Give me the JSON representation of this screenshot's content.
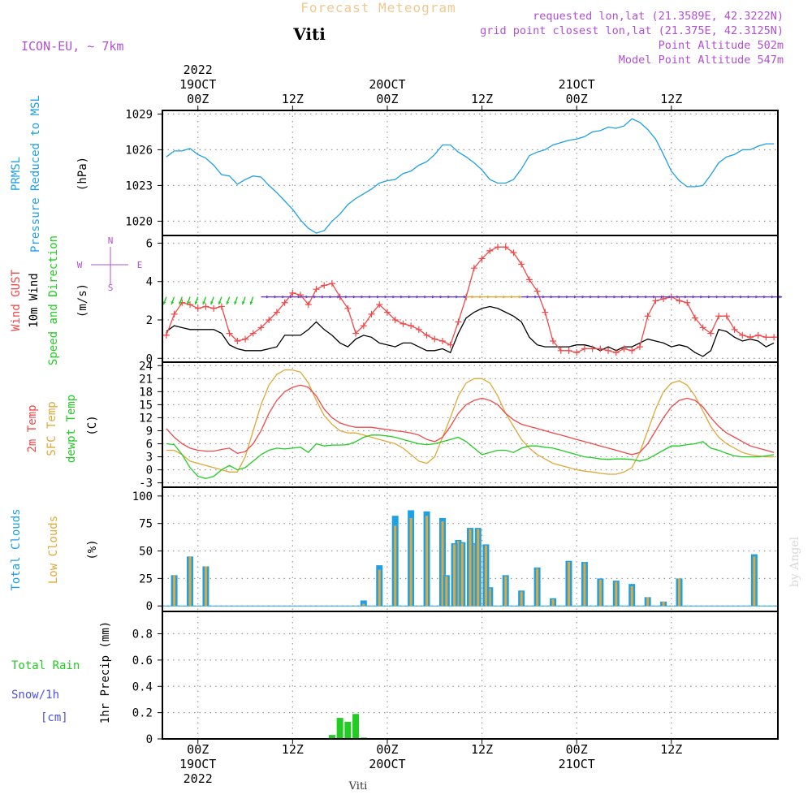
{
  "header": {
    "title": "Forecast Meteogram",
    "location": "Viti",
    "model": "ICON-EU, ~ 7km",
    "requested": "requested lon,lat (21.3589E, 42.3222N)",
    "grid_point": "grid point closest lon,lat (21.375E, 42.3125N)",
    "point_altitude": "Point Altitude 502m",
    "model_altitude": "Model Point Altitude 547m",
    "footer_location": "Viti",
    "watermark": "by Angel"
  },
  "colors": {
    "pressure": "#1ea0e6",
    "gust": "#f04848",
    "wind": "#000000",
    "t2m": "#f04848",
    "sfc": "#e0a838",
    "dew": "#22cc22",
    "total_clouds": "#1ea0e6",
    "low_clouds": "#e0a838",
    "rain": "#22cc22",
    "snow": "#5050e0",
    "label_purple": "#b050d0",
    "title_orange": "#f0c890"
  },
  "chart_data": [
    {
      "type": "line",
      "panel": "pressure",
      "ylabel_lines": [
        "PRMSL",
        "Pressure Reduced to MSL"
      ],
      "yunit": "(hPa)",
      "ylim": [
        1018.8,
        1029.3
      ],
      "yticks": [
        1020,
        1023,
        1026,
        1029
      ],
      "x": [
        -4,
        -3,
        -2,
        -1,
        0,
        1,
        2,
        3,
        4,
        5,
        6,
        7,
        8,
        9,
        10,
        11,
        12,
        13,
        14,
        15,
        16,
        17,
        18,
        19,
        20,
        21,
        22,
        23,
        24,
        25,
        26,
        27,
        28,
        29,
        30,
        31,
        32,
        33,
        34,
        35,
        36,
        37,
        38,
        39,
        40,
        41,
        42,
        43,
        44,
        45,
        46,
        47,
        48,
        49,
        50,
        51,
        52,
        53,
        54,
        55,
        56,
        57,
        58,
        59,
        60,
        61,
        62,
        63,
        64,
        65,
        66,
        67,
        68,
        69,
        70,
        71,
        72,
        73
      ],
      "series": [
        {
          "values": [
            1025.4,
            1025.9,
            1025.9,
            1026.1,
            1025.6,
            1025.3,
            1024.7,
            1023.9,
            1023.8,
            1023.1,
            1023.5,
            1023.8,
            1023.7,
            1023.0,
            1022.4,
            1021.7,
            1021.0,
            1020.1,
            1019.4,
            1019.0,
            1019.2,
            1020.0,
            1020.6,
            1021.4,
            1021.9,
            1022.3,
            1022.7,
            1023.2,
            1023.4,
            1023.5,
            1024.0,
            1024.2,
            1024.7,
            1025.0,
            1025.6,
            1026.4,
            1026.4,
            1025.8,
            1025.4,
            1024.9,
            1024.3,
            1023.5,
            1023.2,
            1023.2,
            1023.5,
            1024.4,
            1025.5,
            1025.8,
            1026.0,
            1026.4,
            1026.6,
            1026.8,
            1026.9,
            1027.1,
            1027.5,
            1027.6,
            1027.9,
            1027.8,
            1028.0,
            1028.6,
            1028.3,
            1027.7,
            1026.9,
            1025.6,
            1024.2,
            1023.4,
            1022.9,
            1022.9,
            1023.0,
            1023.9,
            1024.9,
            1025.4,
            1025.6,
            1026.0,
            1026.0,
            1026.3,
            1026.5,
            1026.5
          ]
        }
      ]
    },
    {
      "type": "line",
      "panel": "wind",
      "ylabel_lines": [
        "Wind GUST",
        "10m Wind",
        "Speed and Direction"
      ],
      "yunit": "(m/s)",
      "compass": {
        "north": "N",
        "west": "W",
        "east": "E",
        "south": "S"
      },
      "ylim": [
        -0.2,
        6.4
      ],
      "yticks": [
        0,
        2,
        4,
        6
      ],
      "x": [
        -4,
        -3,
        -2,
        -1,
        0,
        1,
        2,
        3,
        4,
        5,
        6,
        7,
        8,
        9,
        10,
        11,
        12,
        13,
        14,
        15,
        16,
        17,
        18,
        19,
        20,
        21,
        22,
        23,
        24,
        25,
        26,
        27,
        28,
        29,
        30,
        31,
        32,
        33,
        34,
        35,
        36,
        37,
        38,
        39,
        40,
        41,
        42,
        43,
        44,
        45,
        46,
        47,
        48,
        49,
        50,
        51,
        52,
        53,
        54,
        55,
        56,
        57,
        58,
        59,
        60,
        61,
        62,
        63,
        64,
        65,
        66,
        67,
        68,
        69,
        70,
        71,
        72,
        73
      ],
      "series": [
        {
          "name": "Wind GUST",
          "values": [
            1.2,
            2.3,
            2.9,
            2.8,
            2.6,
            2.7,
            2.6,
            2.7,
            1.3,
            0.9,
            1.0,
            1.3,
            1.6,
            2.0,
            2.4,
            2.9,
            3.4,
            3.3,
            2.8,
            3.6,
            3.8,
            3.9,
            3.2,
            2.6,
            1.3,
            1.7,
            2.3,
            2.8,
            2.4,
            2.0,
            1.8,
            1.7,
            1.5,
            1.2,
            1.0,
            0.9,
            0.7,
            1.9,
            3.2,
            4.7,
            5.2,
            5.6,
            5.8,
            5.8,
            5.5,
            4.9,
            4.1,
            3.5,
            2.4,
            0.9,
            0.4,
            0.4,
            0.3,
            0.5,
            0.5,
            0.5,
            0.4,
            0.3,
            0.5,
            0.4,
            0.6,
            2.2,
            3.0,
            3.1,
            3.2,
            3.0,
            2.9,
            2.1,
            1.6,
            1.3,
            2.2,
            2.2,
            1.5,
            1.2,
            1.1,
            1.2,
            1.1,
            1.1
          ]
        },
        {
          "name": "10m Wind",
          "values": [
            1.4,
            1.7,
            1.6,
            1.5,
            1.5,
            1.5,
            1.5,
            1.3,
            0.7,
            0.5,
            0.4,
            0.4,
            0.4,
            0.5,
            0.6,
            1.2,
            1.2,
            1.2,
            1.5,
            1.9,
            1.5,
            1.2,
            0.8,
            0.6,
            1.0,
            1.2,
            1.1,
            0.8,
            0.7,
            0.6,
            0.8,
            0.8,
            0.6,
            0.4,
            0.4,
            0.5,
            0.3,
            1.3,
            2.1,
            2.4,
            2.6,
            2.7,
            2.6,
            2.4,
            2.2,
            1.9,
            1.1,
            0.7,
            0.6,
            0.6,
            0.6,
            0.6,
            0.7,
            0.7,
            0.6,
            0.4,
            0.6,
            0.4,
            0.6,
            0.6,
            0.8,
            1.0,
            0.9,
            0.8,
            0.6,
            0.7,
            0.6,
            0.3,
            0.1,
            0.4,
            1.5,
            1.4,
            1.1,
            0.9,
            1.0,
            0.9,
            0.6,
            0.8
          ]
        }
      ],
      "arrows_dir_deg": [
        200,
        200,
        200,
        200,
        200,
        200,
        200,
        200,
        200,
        200,
        200,
        200,
        90,
        90,
        90,
        90,
        90,
        90,
        90,
        90,
        90,
        90,
        90,
        90,
        90,
        90,
        90,
        90,
        90,
        90,
        90,
        90,
        90,
        90,
        90,
        90,
        90,
        90,
        90,
        90,
        90,
        90,
        90,
        90,
        90,
        90,
        90,
        90,
        90,
        90,
        90,
        90,
        90,
        90,
        90,
        90,
        90,
        90,
        90,
        90,
        90,
        90,
        90,
        90,
        90,
        90,
        90,
        90,
        90,
        90,
        90,
        90,
        90,
        90,
        90,
        90,
        90,
        90
      ]
    },
    {
      "type": "line",
      "panel": "temperature",
      "ylabel_lines": [
        "2m Temp",
        "SFC Temp",
        "dewpt Temp"
      ],
      "yunit": "(C)",
      "ylim": [
        -4,
        24.8
      ],
      "yticks": [
        -3,
        0,
        3,
        6,
        9,
        12,
        15,
        18,
        21,
        24
      ],
      "x": [
        -4,
        -3,
        -2,
        -1,
        0,
        1,
        2,
        3,
        4,
        5,
        6,
        7,
        8,
        9,
        10,
        11,
        12,
        13,
        14,
        15,
        16,
        17,
        18,
        19,
        20,
        21,
        22,
        23,
        24,
        25,
        26,
        27,
        28,
        29,
        30,
        31,
        32,
        33,
        34,
        35,
        36,
        37,
        38,
        39,
        40,
        41,
        42,
        43,
        44,
        45,
        46,
        47,
        48,
        49,
        50,
        51,
        52,
        53,
        54,
        55,
        56,
        57,
        58,
        59,
        60,
        61,
        62,
        63,
        64,
        65,
        66,
        67,
        68,
        69,
        70,
        71,
        72,
        73
      ],
      "series": [
        {
          "name": "2m Temp",
          "values": [
            9.5,
            7.5,
            6.0,
            5.0,
            4.5,
            4.3,
            4.3,
            4.7,
            5.0,
            3.8,
            4.2,
            6.0,
            9.0,
            13.0,
            16.0,
            18.0,
            19.0,
            19.5,
            19.0,
            17.0,
            14.0,
            12.0,
            10.8,
            10.2,
            9.8,
            9.8,
            9.8,
            9.5,
            9.3,
            9.0,
            8.8,
            8.5,
            8.0,
            7.0,
            6.5,
            7.5,
            10.0,
            13.0,
            15.0,
            16.0,
            16.5,
            16.0,
            15.0,
            13.0,
            11.5,
            10.5,
            10.0,
            9.5,
            9.0,
            8.5,
            8.0,
            7.5,
            7.0,
            6.5,
            6.0,
            5.5,
            5.0,
            4.5,
            4.0,
            3.5,
            4.0,
            6.0,
            9.0,
            12.0,
            14.5,
            16.0,
            16.5,
            16.0,
            14.5,
            12.0,
            10.0,
            8.5,
            7.5,
            6.5,
            5.5,
            5.0,
            4.5,
            4.0
          ]
        },
        {
          "name": "SFC Temp",
          "values": [
            4.5,
            4.5,
            3.5,
            2.0,
            1.5,
            1.0,
            0.5,
            0.0,
            -0.5,
            -0.5,
            3.0,
            9.0,
            15.0,
            19.5,
            22.0,
            23.0,
            23.0,
            22.5,
            20.0,
            16.0,
            12.5,
            10.5,
            9.0,
            8.5,
            8.5,
            8.0,
            7.5,
            7.0,
            6.5,
            6.0,
            5.0,
            3.5,
            2.0,
            1.5,
            3.0,
            7.5,
            12.0,
            17.0,
            20.0,
            21.0,
            21.0,
            20.0,
            17.0,
            13.0,
            10.0,
            7.0,
            5.0,
            3.5,
            2.5,
            1.5,
            1.0,
            0.5,
            0.0,
            -0.3,
            -0.5,
            -0.8,
            -1.0,
            -1.0,
            -0.5,
            0.5,
            4.0,
            9.0,
            14.0,
            18.0,
            20.0,
            20.5,
            19.5,
            17.0,
            13.5,
            10.0,
            7.5,
            6.0,
            5.0,
            4.0,
            3.5,
            3.2,
            3.0,
            3.0
          ]
        },
        {
          "name": "dewpt Temp",
          "values": [
            6.0,
            5.8,
            3.5,
            0.5,
            -1.5,
            -2.0,
            -1.5,
            0.0,
            1.0,
            0.0,
            0.5,
            2.0,
            3.5,
            4.5,
            5.0,
            4.8,
            5.0,
            5.2,
            4.0,
            6.0,
            5.5,
            5.7,
            5.7,
            5.8,
            6.5,
            7.5,
            8.0,
            8.0,
            7.8,
            7.5,
            7.0,
            6.5,
            6.0,
            5.8,
            6.0,
            6.5,
            7.0,
            7.5,
            6.5,
            5.0,
            3.5,
            4.0,
            4.5,
            4.5,
            4.0,
            5.0,
            5.5,
            5.5,
            5.2,
            5.0,
            4.5,
            4.0,
            3.5,
            3.0,
            2.8,
            2.5,
            2.4,
            2.5,
            2.5,
            2.4,
            2.0,
            2.5,
            3.5,
            4.5,
            5.5,
            5.5,
            5.8,
            6.0,
            6.5,
            5.0,
            4.5,
            3.8,
            3.2,
            3.0,
            3.0,
            3.0,
            3.2,
            3.5
          ]
        }
      ]
    },
    {
      "type": "bar",
      "panel": "clouds",
      "ylabel_lines": [
        "Total Clouds",
        "Low Clouds"
      ],
      "yunit": "(%)",
      "ylim": [
        -5,
        108
      ],
      "yticks": [
        0,
        25,
        50,
        75,
        100
      ],
      "x": [
        -3,
        -1,
        1,
        3,
        5,
        7,
        9,
        11,
        13,
        15,
        17,
        19,
        21,
        23,
        25,
        27,
        29,
        31,
        33,
        35,
        37,
        39,
        41,
        43,
        45,
        47,
        49,
        51,
        53,
        55,
        57,
        59,
        61,
        63,
        65,
        67,
        69,
        71,
        73
      ],
      "series": [
        {
          "name": "Total Clouds",
          "values": [
            28,
            45,
            36,
            0,
            0,
            0,
            0,
            0,
            0,
            0,
            0,
            0,
            5,
            37,
            82,
            87,
            86,
            80,
            60,
            57,
            17,
            28,
            14,
            35,
            7,
            41,
            40,
            25,
            23,
            20,
            8,
            4,
            25,
            0,
            0,
            0,
            0,
            0,
            0
          ]
        },
        {
          "name": "Low Clouds",
          "values": [
            28,
            45,
            36,
            0,
            0,
            0,
            0,
            0,
            0,
            0,
            0,
            0,
            2,
            33,
            73,
            80,
            82,
            77,
            59,
            56,
            16,
            27,
            13,
            34,
            6,
            40,
            39,
            24,
            22,
            18,
            8,
            4,
            25,
            0,
            0,
            0,
            0,
            0,
            0
          ]
        }
      ],
      "extra_bars": {
        "x": [
          63,
          65,
          67,
          69,
          71,
          73,
          75,
          141
        ],
        "total": [
          28,
          57,
          58,
          71,
          71,
          56,
          0,
          47
        ],
        "low": [
          27,
          56,
          57,
          70,
          70,
          55,
          0,
          45
        ]
      }
    },
    {
      "type": "bar",
      "panel": "precip",
      "ylabel": "1hr Precip (mm)",
      "legend_lines": [
        "Total Rain",
        "Snow/1h",
        "[cm]"
      ],
      "ylim": [
        0,
        0.97
      ],
      "yticks": [
        0,
        0.2,
        0.4,
        0.6,
        0.8
      ],
      "ytick_labels": [
        "0",
        "0.2",
        "0.4",
        "0.6",
        "0.8"
      ],
      "x": [
        17,
        18,
        19,
        20,
        21
      ],
      "series": [
        {
          "name": "Total Rain",
          "values": [
            0.03,
            0.16,
            0.13,
            0.19,
            0.01
          ]
        }
      ]
    }
  ],
  "time_axis": {
    "x_min": -4.5,
    "x_max": 73.5,
    "top_labels": [
      {
        "h": 0,
        "lines": [
          "2022",
          "19OCT",
          "00Z"
        ]
      },
      {
        "h": 12,
        "lines": [
          "12Z"
        ]
      },
      {
        "h": 24,
        "lines": [
          "20OCT",
          "00Z"
        ]
      },
      {
        "h": 36,
        "lines": [
          "12Z"
        ]
      },
      {
        "h": 48,
        "lines": [
          "21OCT",
          "00Z"
        ]
      },
      {
        "h": 60,
        "lines": [
          "12Z"
        ]
      }
    ],
    "bottom_labels": [
      {
        "h": 0,
        "lines": [
          "00Z",
          "19OCT",
          "2022"
        ]
      },
      {
        "h": 12,
        "lines": [
          "12Z"
        ]
      },
      {
        "h": 24,
        "lines": [
          "00Z",
          "20OCT"
        ]
      },
      {
        "h": 36,
        "lines": [
          "12Z"
        ]
      },
      {
        "h": 48,
        "lines": [
          "00Z",
          "21OCT"
        ]
      },
      {
        "h": 60,
        "lines": [
          "12Z"
        ]
      }
    ]
  }
}
